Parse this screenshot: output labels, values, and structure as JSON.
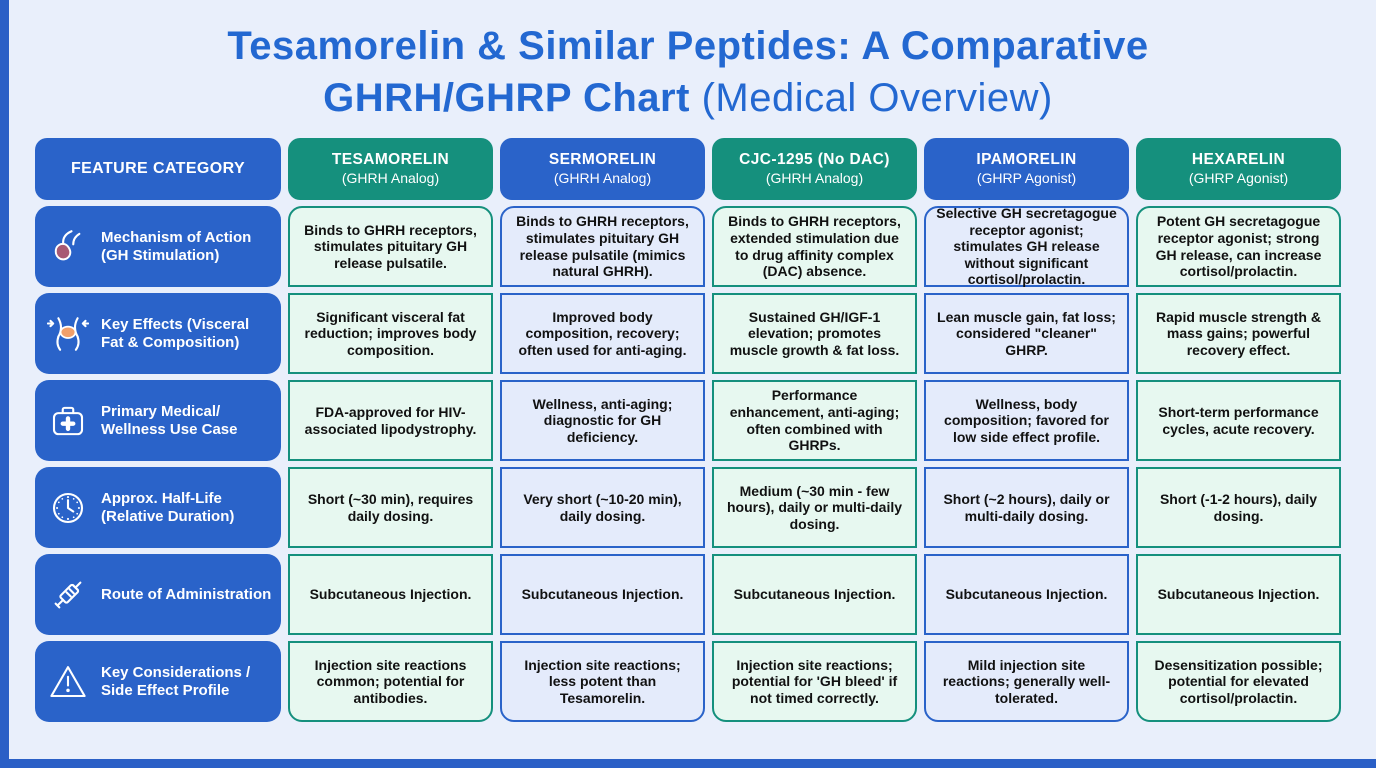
{
  "colors": {
    "accent_blue": "#2a63c9",
    "accent_teal": "#15907d",
    "title_blue": "#2368d1",
    "mint_cell_bg": "#e7f8f0",
    "blue_cell_bg": "#e4ebfb",
    "page_bg": "#e9effb",
    "frame_blue": "#2a5fc6",
    "cell_text": "#111111"
  },
  "title": {
    "line1": "Tesamorelin & Similar Peptides: A Comparative",
    "line2_strong": "GHRH/GHRP Chart",
    "line2_light": "(Medical Overview)"
  },
  "chart_data": {
    "type": "table",
    "title": "Tesamorelin & Similar Peptides: A Comparative GHRH/GHRP Chart (Medical Overview)",
    "feature_header": "FEATURE CATEGORY",
    "columns": [
      {
        "name": "TESAMORELIN",
        "subtitle": "(GHRH Analog)",
        "theme": "teal"
      },
      {
        "name": "SERMORELIN",
        "subtitle": "(GHRH Analog)",
        "theme": "blue"
      },
      {
        "name": "CJC-1295 (No DAC)",
        "subtitle": "(GHRH Analog)",
        "theme": "teal"
      },
      {
        "name": "IPAMORELIN",
        "subtitle": "(GHRP Agonist)",
        "theme": "blue"
      },
      {
        "name": "HEXARELIN",
        "subtitle": "(GHRP Agonist)",
        "theme": "teal"
      }
    ],
    "rows": [
      {
        "icon": "pituitary-gland-icon",
        "label": "Mechanism of Action (GH Stimulation)",
        "cells": [
          "Binds to GHRH receptors, stimulates pituitary GH release pulsatile.",
          "Binds to GHRH receptors, stimulates pituitary GH release pulsatile (mimics natural GHRH).",
          "Binds to GHRH receptors, extended stimulation due to drug affinity complex (DAC) absence.",
          "Selective GH secretagogue receptor agonist; stimulates GH release without significant cortisol/prolactin.",
          "Potent GH secretagogue receptor agonist; strong GH release, can increase cortisol/prolactin."
        ]
      },
      {
        "icon": "waist-icon",
        "label": "Key Effects (Visceral Fat & Composition)",
        "cells": [
          "Significant visceral fat reduction; improves body composition.",
          "Improved body composition, recovery; often used for anti-aging.",
          "Sustained GH/IGF-1 elevation; promotes muscle growth & fat loss.",
          "Lean muscle gain, fat loss; considered \"cleaner\" GHRP.",
          "Rapid muscle strength & mass gains; powerful recovery effect."
        ]
      },
      {
        "icon": "first-aid-kit-icon",
        "label": "Primary Medical/ Wellness Use Case",
        "cells": [
          "FDA-approved for HIV-associated lipodystrophy.",
          "Wellness, anti-aging; diagnostic for GH deficiency.",
          "Performance enhancement, anti-aging; often combined with GHRPs.",
          "Wellness, body composition; favored for low side effect profile.",
          "Short-term performance cycles, acute recovery."
        ]
      },
      {
        "icon": "clock-icon",
        "label": "Approx. Half-Life (Relative Duration)",
        "cells": [
          "Short (~30 min), requires daily dosing.",
          "Very short (~10-20 min), daily dosing.",
          "Medium (~30 min - few hours), daily or multi-daily dosing.",
          "Short (~2 hours), daily or multi-daily dosing.",
          "Short (-1-2 hours), daily dosing."
        ]
      },
      {
        "icon": "syringe-icon",
        "label": "Route of Administration",
        "cells": [
          "Subcutaneous Injection.",
          "Subcutaneous Injection.",
          "Subcutaneous Injection.",
          "Subcutaneous Injection.",
          "Subcutaneous Injection."
        ]
      },
      {
        "icon": "warning-triangle-icon",
        "label": "Key Considerations / Side Effect Profile",
        "cells": [
          "Injection site reactions common; potential for antibodies.",
          "Injection site reactions; less potent than Tesamorelin.",
          "Injection site reactions; potential for 'GH bleed' if not timed correctly.",
          "Mild injection site reactions; generally well-tolerated.",
          "Desensitization possible; potential for elevated cortisol/prolactin."
        ]
      }
    ]
  }
}
